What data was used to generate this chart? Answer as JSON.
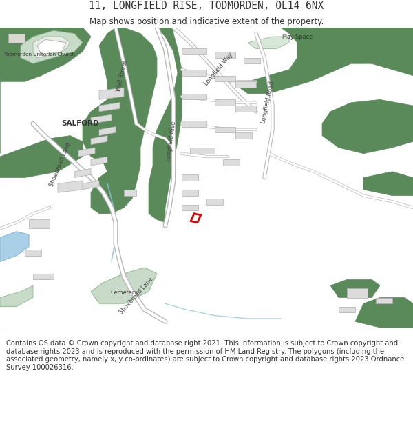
{
  "title": "11, LONGFIELD RISE, TODMORDEN, OL14 6NX",
  "subtitle": "Map shows position and indicative extent of the property.",
  "footer": "Contains OS data © Crown copyright and database right 2021. This information is subject to Crown copyright and database rights 2023 and is reproduced with the permission of HM Land Registry. The polygons (including the associated geometry, namely x, y co-ordinates) are subject to Crown copyright and database rights 2023 Ordnance Survey 100026316.",
  "map_bg": "#f5f5f0",
  "green_dark": "#5a8a5a",
  "green_light": "#c8dbc8",
  "green_play": "#d8e8d8",
  "road_white": "#ffffff",
  "road_outline": "#c8c8c8",
  "building_fill": "#dcdcdc",
  "building_edge": "#b0b0b0",
  "water_fill": "#aad0e8",
  "water_edge": "#88b8d0",
  "red_plot": "#e00000",
  "text_dark": "#333333",
  "text_road": "#444444",
  "title_fontsize": 10.5,
  "subtitle_fontsize": 8.5,
  "footer_fontsize": 7.2
}
